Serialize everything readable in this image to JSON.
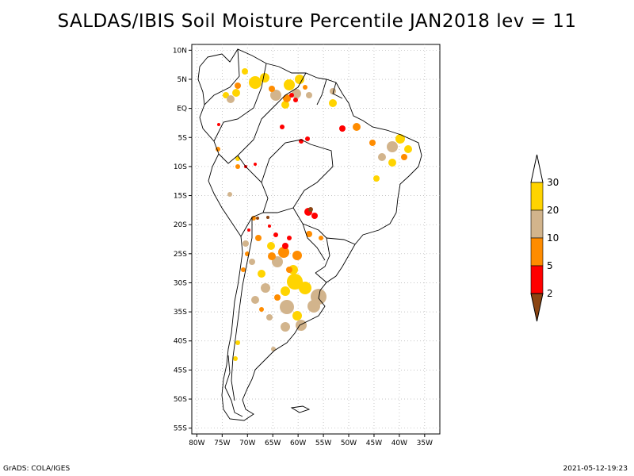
{
  "title": "SALDAS/IBIS Soil Moisture Percentile JAN2018 lev = 11",
  "footer": {
    "left": "GrADS: COLA/IGES",
    "right": "2021-05-12-19:23"
  },
  "lat_labels": [
    "10N",
    "5N",
    "EQ",
    "5S",
    "10S",
    "15S",
    "20S",
    "25S",
    "30S",
    "35S",
    "40S",
    "45S",
    "50S",
    "55S"
  ],
  "lat_values": [
    10,
    5,
    0,
    -5,
    -10,
    -15,
    -20,
    -25,
    -30,
    -35,
    -40,
    -45,
    -50,
    -55
  ],
  "lon_labels": [
    "80W",
    "75W",
    "70W",
    "65W",
    "60W",
    "55W",
    "50W",
    "45W",
    "40W",
    "35W"
  ],
  "lon_values": [
    -80,
    -75,
    -70,
    -65,
    -60,
    -55,
    -50,
    -45,
    -40,
    -35
  ],
  "map_extent": {
    "lon_min": -81,
    "lon_max": -32,
    "lat_min": -56,
    "lat_max": 11
  },
  "colorbar": {
    "labels": [
      "30",
      "20",
      "10",
      "5",
      "2"
    ],
    "classes": [
      {
        "range": ">30",
        "color": "#ffffff"
      },
      {
        "range": "20-30",
        "color": "#ffd400"
      },
      {
        "range": "10-20",
        "color": "#d2b48c"
      },
      {
        "range": "5-10",
        "color": "#ff8c00"
      },
      {
        "range": "2-5",
        "color": "#ff0000"
      },
      {
        "range": "<2",
        "color": "#8b4513"
      }
    ]
  }
}
